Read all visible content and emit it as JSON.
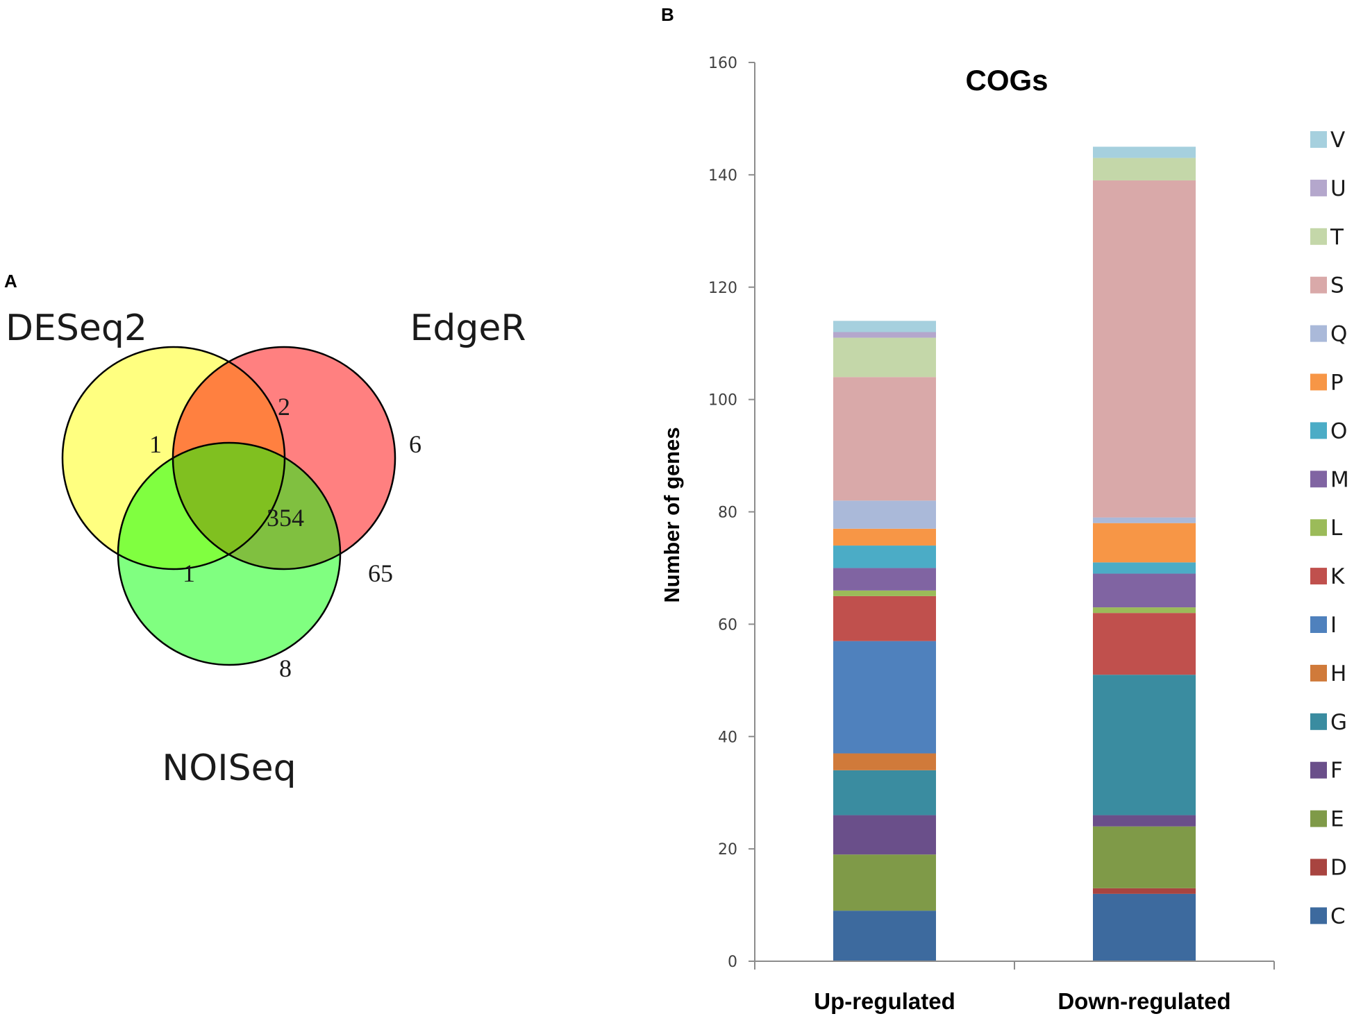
{
  "panel_a": {
    "letter": "A",
    "venn": {
      "sets": [
        {
          "name": "DESeq2",
          "color": "#ffff80"
        },
        {
          "name": "EdgeR",
          "color": "#ff8080"
        },
        {
          "name": "NOISeq",
          "color": "#80ff80"
        }
      ],
      "regions": {
        "deseq2_only": "1",
        "edger_only": "6",
        "noiseq_only": "8",
        "deseq2_edger": "2",
        "deseq2_noiseq": "1",
        "edger_noiseq": "65",
        "all_three": "354"
      },
      "region_colors": {
        "deseq2_edger": "#ff8040",
        "deseq2_noiseq": "#80ff40",
        "edger_noiseq": "#80c040",
        "all_three": "#80c020"
      }
    }
  },
  "panel_b": {
    "letter": "B"
  },
  "chart_data": {
    "type": "bar",
    "stacked": true,
    "title": "COGs",
    "xlabel": "",
    "ylabel": "Number of genes",
    "ylim": [
      0,
      160
    ],
    "yticks": [
      0,
      20,
      40,
      60,
      80,
      100,
      120,
      140,
      160
    ],
    "categories": [
      "Up-regulated",
      "Down-regulated"
    ],
    "legend_position": "right",
    "series": [
      {
        "name": "C",
        "color": "#3d6a9e",
        "values": [
          9,
          12
        ]
      },
      {
        "name": "D",
        "color": "#a84440",
        "values": [
          0,
          1
        ]
      },
      {
        "name": "E",
        "color": "#7f9a48",
        "values": [
          10,
          11
        ]
      },
      {
        "name": "F",
        "color": "#6a4f8a",
        "values": [
          7,
          2
        ]
      },
      {
        "name": "G",
        "color": "#3a8ca0",
        "values": [
          8,
          25
        ]
      },
      {
        "name": "H",
        "color": "#d07a3a",
        "values": [
          3,
          0
        ]
      },
      {
        "name": "I",
        "color": "#4f81bd",
        "values": [
          20,
          0
        ]
      },
      {
        "name": "K",
        "color": "#c0504d",
        "values": [
          8,
          11
        ]
      },
      {
        "name": "L",
        "color": "#9bbb59",
        "values": [
          1,
          1
        ]
      },
      {
        "name": "M",
        "color": "#8064a2",
        "values": [
          4,
          6
        ]
      },
      {
        "name": "O",
        "color": "#4bacc6",
        "values": [
          4,
          2
        ]
      },
      {
        "name": "P",
        "color": "#f79646",
        "values": [
          3,
          7
        ]
      },
      {
        "name": "Q",
        "color": "#aab9d9",
        "values": [
          5,
          1
        ]
      },
      {
        "name": "S",
        "color": "#d9a9a9",
        "values": [
          22,
          60
        ]
      },
      {
        "name": "T",
        "color": "#c4d7a9",
        "values": [
          7,
          4
        ]
      },
      {
        "name": "U",
        "color": "#b4a7cc",
        "values": [
          1,
          0
        ]
      },
      {
        "name": "V",
        "color": "#a6d0de",
        "values": [
          2,
          2
        ]
      }
    ]
  }
}
